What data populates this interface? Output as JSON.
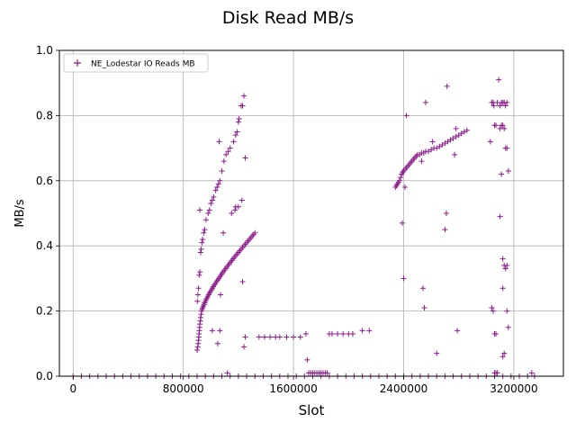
{
  "chart_data": {
    "type": "scatter",
    "title": "Disk Read MB/s",
    "xlabel": "Slot",
    "ylabel": "MB/s",
    "xlim": [
      -100000,
      3560000
    ],
    "ylim": [
      0,
      1.0
    ],
    "x_ticks": [
      0,
      800000,
      1600000,
      2400000,
      3200000
    ],
    "x_tick_labels": [
      "0",
      "800000",
      "1600000",
      "2400000",
      "3200000"
    ],
    "y_ticks": [
      0.0,
      0.2,
      0.4,
      0.6,
      0.8,
      1.0
    ],
    "y_tick_labels": [
      "0.0",
      "0.2",
      "0.4",
      "0.6",
      "0.8",
      "1.0"
    ],
    "grid": true,
    "legend_position": "top-left",
    "marker": "+",
    "series_color": "#8b1a8b",
    "series": [
      {
        "name": "NE_Lodestar IO Reads MB",
        "points": [
          [
            0,
            0.0
          ],
          [
            60000,
            0.0
          ],
          [
            120000,
            0.0
          ],
          [
            180000,
            0.0
          ],
          [
            240000,
            0.0
          ],
          [
            300000,
            0.0
          ],
          [
            360000,
            0.0
          ],
          [
            420000,
            0.0
          ],
          [
            480000,
            0.0
          ],
          [
            540000,
            0.0
          ],
          [
            600000,
            0.0
          ],
          [
            660000,
            0.0
          ],
          [
            720000,
            0.0
          ],
          [
            780000,
            0.0
          ],
          [
            840000,
            0.0
          ],
          [
            900000,
            0.0
          ],
          [
            960000,
            0.0
          ],
          [
            1020000,
            0.0
          ],
          [
            1080000,
            0.0
          ],
          [
            1140000,
            0.0
          ],
          [
            1200000,
            0.0
          ],
          [
            1260000,
            0.0
          ],
          [
            1320000,
            0.0
          ],
          [
            1380000,
            0.0
          ],
          [
            1440000,
            0.0
          ],
          [
            1500000,
            0.0
          ],
          [
            1560000,
            0.0
          ],
          [
            1620000,
            0.0
          ],
          [
            1680000,
            0.0
          ],
          [
            1740000,
            0.0
          ],
          [
            1800000,
            0.0
          ],
          [
            1860000,
            0.0
          ],
          [
            1920000,
            0.0
          ],
          [
            1980000,
            0.0
          ],
          [
            2040000,
            0.0
          ],
          [
            2100000,
            0.0
          ],
          [
            2160000,
            0.0
          ],
          [
            2220000,
            0.0
          ],
          [
            2280000,
            0.0
          ],
          [
            2340000,
            0.0
          ],
          [
            2400000,
            0.0
          ],
          [
            2460000,
            0.0
          ],
          [
            2520000,
            0.0
          ],
          [
            2580000,
            0.0
          ],
          [
            2640000,
            0.0
          ],
          [
            2700000,
            0.0
          ],
          [
            2760000,
            0.0
          ],
          [
            2820000,
            0.0
          ],
          [
            2880000,
            0.0
          ],
          [
            2940000,
            0.0
          ],
          [
            3000000,
            0.0
          ],
          [
            3060000,
            0.0
          ],
          [
            3120000,
            0.0
          ],
          [
            3180000,
            0.0
          ],
          [
            3240000,
            0.0
          ],
          [
            3300000,
            0.0
          ],
          [
            3350000,
            0.0
          ],
          [
            900000,
            0.08
          ],
          [
            905000,
            0.09
          ],
          [
            908000,
            0.1
          ],
          [
            910000,
            0.11
          ],
          [
            912000,
            0.12
          ],
          [
            914000,
            0.13
          ],
          [
            916000,
            0.14
          ],
          [
            918000,
            0.15
          ],
          [
            920000,
            0.16
          ],
          [
            923000,
            0.17
          ],
          [
            926000,
            0.18
          ],
          [
            929000,
            0.19
          ],
          [
            932000,
            0.2
          ],
          [
            936000,
            0.205
          ],
          [
            940000,
            0.21
          ],
          [
            945000,
            0.215
          ],
          [
            950000,
            0.22
          ],
          [
            955000,
            0.225
          ],
          [
            960000,
            0.23
          ],
          [
            966000,
            0.235
          ],
          [
            972000,
            0.24
          ],
          [
            978000,
            0.245
          ],
          [
            984000,
            0.25
          ],
          [
            990000,
            0.255
          ],
          [
            997000,
            0.26
          ],
          [
            1004000,
            0.265
          ],
          [
            1011000,
            0.27
          ],
          [
            1018000,
            0.275
          ],
          [
            1025000,
            0.28
          ],
          [
            1033000,
            0.285
          ],
          [
            1041000,
            0.29
          ],
          [
            1049000,
            0.295
          ],
          [
            1057000,
            0.3
          ],
          [
            1065000,
            0.305
          ],
          [
            1073000,
            0.31
          ],
          [
            1081000,
            0.315
          ],
          [
            1089000,
            0.32
          ],
          [
            1098000,
            0.325
          ],
          [
            1107000,
            0.33
          ],
          [
            1116000,
            0.335
          ],
          [
            1125000,
            0.34
          ],
          [
            1134000,
            0.345
          ],
          [
            1143000,
            0.35
          ],
          [
            1152000,
            0.355
          ],
          [
            1161000,
            0.36
          ],
          [
            1170000,
            0.365
          ],
          [
            1180000,
            0.37
          ],
          [
            1190000,
            0.375
          ],
          [
            1200000,
            0.38
          ],
          [
            1210000,
            0.385
          ],
          [
            1220000,
            0.39
          ],
          [
            1230000,
            0.395
          ],
          [
            1240000,
            0.4
          ],
          [
            1250000,
            0.405
          ],
          [
            1260000,
            0.41
          ],
          [
            1270000,
            0.415
          ],
          [
            1280000,
            0.42
          ],
          [
            1290000,
            0.425
          ],
          [
            1300000,
            0.43
          ],
          [
            1310000,
            0.435
          ],
          [
            1320000,
            0.44
          ],
          [
            902000,
            0.23
          ],
          [
            906000,
            0.25
          ],
          [
            910000,
            0.27
          ],
          [
            915000,
            0.31
          ],
          [
            920000,
            0.32
          ],
          [
            925000,
            0.38
          ],
          [
            930000,
            0.39
          ],
          [
            935000,
            0.41
          ],
          [
            940000,
            0.42
          ],
          [
            948000,
            0.44
          ],
          [
            955000,
            0.45
          ],
          [
            965000,
            0.48
          ],
          [
            980000,
            0.5
          ],
          [
            990000,
            0.51
          ],
          [
            1000000,
            0.53
          ],
          [
            1010000,
            0.54
          ],
          [
            1020000,
            0.55
          ],
          [
            1035000,
            0.57
          ],
          [
            1045000,
            0.58
          ],
          [
            1055000,
            0.59
          ],
          [
            1065000,
            0.6
          ],
          [
            1080000,
            0.63
          ],
          [
            1095000,
            0.66
          ],
          [
            1110000,
            0.68
          ],
          [
            1125000,
            0.69
          ],
          [
            1140000,
            0.7
          ],
          [
            1165000,
            0.72
          ],
          [
            1180000,
            0.74
          ],
          [
            1190000,
            0.75
          ],
          [
            1200000,
            0.78
          ],
          [
            1205000,
            0.79
          ],
          [
            1220000,
            0.83
          ],
          [
            1230000,
            0.83
          ],
          [
            1240000,
            0.86
          ],
          [
            1250000,
            0.67
          ],
          [
            920000,
            0.51
          ],
          [
            1060000,
            0.72
          ],
          [
            1150000,
            0.5
          ],
          [
            1175000,
            0.51
          ],
          [
            1200000,
            0.52
          ],
          [
            1225000,
            0.54
          ],
          [
            1180000,
            0.52
          ],
          [
            1090000,
            0.44
          ],
          [
            1070000,
            0.25
          ],
          [
            1010000,
            0.14
          ],
          [
            1065000,
            0.14
          ],
          [
            1050000,
            0.1
          ],
          [
            1120000,
            0.01
          ],
          [
            1350000,
            0.12
          ],
          [
            1230000,
            0.29
          ],
          [
            1240000,
            0.09
          ],
          [
            1250000,
            0.12
          ],
          [
            1390000,
            0.12
          ],
          [
            1430000,
            0.12
          ],
          [
            1470000,
            0.12
          ],
          [
            1500000,
            0.12
          ],
          [
            1550000,
            0.12
          ],
          [
            1600000,
            0.12
          ],
          [
            1650000,
            0.12
          ],
          [
            1690000,
            0.13
          ],
          [
            1700000,
            0.05
          ],
          [
            1710000,
            0.01
          ],
          [
            1725000,
            0.01
          ],
          [
            1740000,
            0.01
          ],
          [
            1755000,
            0.01
          ],
          [
            1770000,
            0.01
          ],
          [
            1785000,
            0.01
          ],
          [
            1800000,
            0.01
          ],
          [
            1815000,
            0.01
          ],
          [
            1830000,
            0.01
          ],
          [
            1845000,
            0.01
          ],
          [
            1860000,
            0.13
          ],
          [
            1880000,
            0.13
          ],
          [
            1920000,
            0.13
          ],
          [
            1960000,
            0.13
          ],
          [
            2000000,
            0.13
          ],
          [
            2030000,
            0.13
          ],
          [
            2100000,
            0.14
          ],
          [
            2150000,
            0.14
          ],
          [
            2340000,
            0.58
          ],
          [
            2348000,
            0.585
          ],
          [
            2355000,
            0.59
          ],
          [
            2362000,
            0.595
          ],
          [
            2370000,
            0.6
          ],
          [
            2378000,
            0.61
          ],
          [
            2385000,
            0.62
          ],
          [
            2393000,
            0.625
          ],
          [
            2400000,
            0.63
          ],
          [
            2410000,
            0.635
          ],
          [
            2420000,
            0.64
          ],
          [
            2430000,
            0.645
          ],
          [
            2440000,
            0.65
          ],
          [
            2450000,
            0.655
          ],
          [
            2460000,
            0.66
          ],
          [
            2470000,
            0.665
          ],
          [
            2480000,
            0.67
          ],
          [
            2490000,
            0.675
          ],
          [
            2500000,
            0.68
          ],
          [
            2515000,
            0.68
          ],
          [
            2530000,
            0.685
          ],
          [
            2545000,
            0.685
          ],
          [
            2560000,
            0.69
          ],
          [
            2580000,
            0.69
          ],
          [
            2600000,
            0.695
          ],
          [
            2620000,
            0.7
          ],
          [
            2640000,
            0.7
          ],
          [
            2660000,
            0.705
          ],
          [
            2680000,
            0.71
          ],
          [
            2700000,
            0.715
          ],
          [
            2720000,
            0.72
          ],
          [
            2740000,
            0.725
          ],
          [
            2760000,
            0.73
          ],
          [
            2780000,
            0.735
          ],
          [
            2800000,
            0.74
          ],
          [
            2820000,
            0.745
          ],
          [
            2840000,
            0.75
          ],
          [
            2860000,
            0.755
          ],
          [
            2390000,
            0.47
          ],
          [
            2400000,
            0.3
          ],
          [
            2410000,
            0.58
          ],
          [
            2420000,
            0.8
          ],
          [
            2530000,
            0.66
          ],
          [
            2540000,
            0.27
          ],
          [
            2550000,
            0.21
          ],
          [
            2560000,
            0.84
          ],
          [
            2610000,
            0.72
          ],
          [
            2640000,
            0.07
          ],
          [
            2700000,
            0.45
          ],
          [
            2710000,
            0.5
          ],
          [
            2715000,
            0.89
          ],
          [
            2770000,
            0.68
          ],
          [
            2780000,
            0.76
          ],
          [
            2790000,
            0.14
          ],
          [
            3030000,
            0.72
          ],
          [
            3040000,
            0.84
          ],
          [
            3050000,
            0.84
          ],
          [
            3055000,
            0.83
          ],
          [
            3060000,
            0.77
          ],
          [
            3070000,
            0.77
          ],
          [
            3080000,
            0.84
          ],
          [
            3090000,
            0.91
          ],
          [
            3100000,
            0.83
          ],
          [
            3110000,
            0.84
          ],
          [
            3120000,
            0.84
          ],
          [
            3130000,
            0.84
          ],
          [
            3140000,
            0.83
          ],
          [
            3150000,
            0.84
          ],
          [
            3100000,
            0.76
          ],
          [
            3110000,
            0.77
          ],
          [
            3120000,
            0.77
          ],
          [
            3130000,
            0.76
          ],
          [
            3140000,
            0.7
          ],
          [
            3150000,
            0.7
          ],
          [
            3160000,
            0.63
          ],
          [
            3110000,
            0.62
          ],
          [
            3100000,
            0.49
          ],
          [
            3120000,
            0.36
          ],
          [
            3130000,
            0.34
          ],
          [
            3140000,
            0.33
          ],
          [
            3150000,
            0.34
          ],
          [
            3120000,
            0.27
          ],
          [
            3040000,
            0.21
          ],
          [
            3050000,
            0.2
          ],
          [
            3060000,
            0.13
          ],
          [
            3070000,
            0.13
          ],
          [
            3150000,
            0.2
          ],
          [
            3160000,
            0.15
          ],
          [
            3130000,
            0.07
          ],
          [
            3120000,
            0.06
          ],
          [
            3060000,
            0.01
          ],
          [
            3070000,
            0.01
          ],
          [
            3080000,
            0.01
          ],
          [
            3330000,
            0.01
          ]
        ]
      }
    ]
  }
}
